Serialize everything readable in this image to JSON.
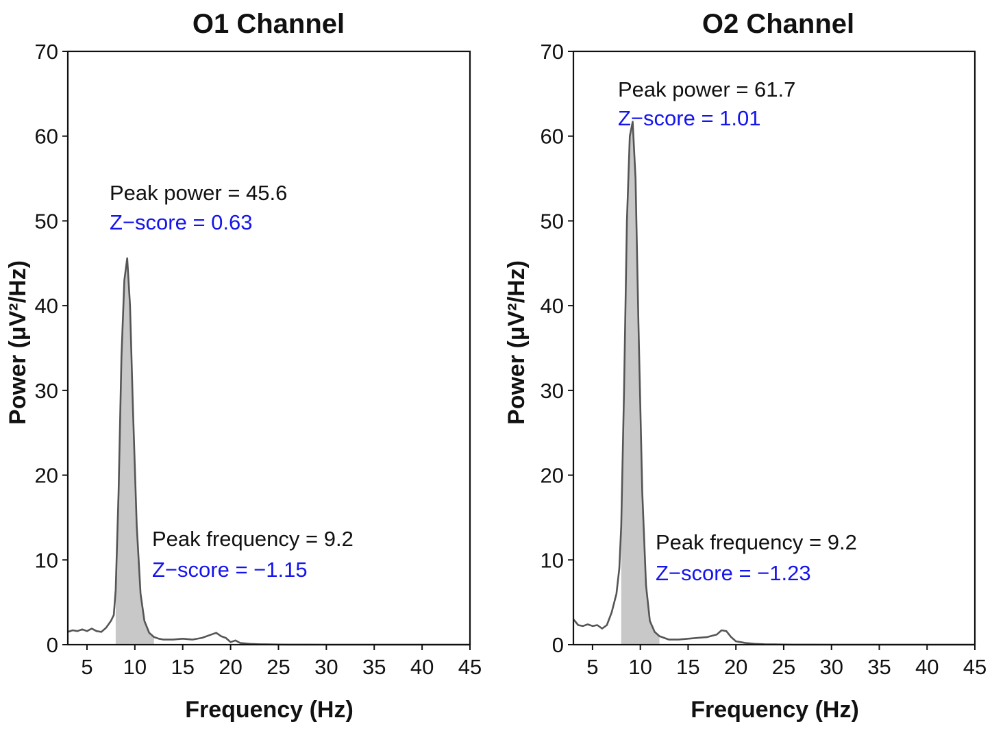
{
  "chart_data": [
    {
      "type": "line",
      "title": "O1 Channel",
      "xlabel": "Frequency (Hz)",
      "ylabel": "Power (μV²/Hz)",
      "xlim": [
        3,
        45
      ],
      "ylim": [
        0,
        70
      ],
      "xticks": [
        5,
        10,
        15,
        20,
        25,
        30,
        35,
        40,
        45
      ],
      "yticks": [
        0,
        10,
        20,
        30,
        40,
        50,
        60,
        70
      ],
      "grid": false,
      "shaded_band": [
        8,
        12
      ],
      "series": [
        {
          "x": [
            3,
            3.5,
            4,
            4.5,
            5,
            5.5,
            6,
            6.5,
            7,
            7.5,
            7.8,
            8,
            8.3,
            8.6,
            8.9,
            9.2,
            9.5,
            9.8,
            10.2,
            10.6,
            11,
            11.5,
            12,
            12.5,
            13,
            14,
            15,
            16,
            17,
            18,
            18.5,
            19,
            19.5,
            20,
            20.5,
            21,
            22,
            23,
            24,
            25,
            26,
            28,
            30,
            35,
            40,
            45
          ],
          "y": [
            1.5,
            1.7,
            1.6,
            1.8,
            1.6,
            1.9,
            1.6,
            1.5,
            2.0,
            2.8,
            3.5,
            6.5,
            18.0,
            34.0,
            43.0,
            45.6,
            40.0,
            28.0,
            14.0,
            6.0,
            2.8,
            1.4,
            0.9,
            0.7,
            0.6,
            0.6,
            0.7,
            0.6,
            0.8,
            1.2,
            1.4,
            1.0,
            0.8,
            0.3,
            0.5,
            0.2,
            0.1,
            0.05,
            0.03,
            0.02,
            0.01,
            0.01,
            0.0,
            0.0,
            0.0,
            0.0
          ]
        }
      ],
      "annotations": {
        "peak_power": "Peak power = 45.6",
        "peak_power_z": "Z−score = 0.63",
        "peak_freq": "Peak frequency = 9.2",
        "peak_freq_z": "Z−score = −1.15"
      }
    },
    {
      "type": "line",
      "title": "O2 Channel",
      "xlabel": "Frequency (Hz)",
      "ylabel": "Power (μV²/Hz)",
      "xlim": [
        3,
        45
      ],
      "ylim": [
        0,
        70
      ],
      "xticks": [
        5,
        10,
        15,
        20,
        25,
        30,
        35,
        40,
        45
      ],
      "yticks": [
        0,
        10,
        20,
        30,
        40,
        50,
        60,
        70
      ],
      "grid": false,
      "shaded_band": [
        8,
        12
      ],
      "series": [
        {
          "x": [
            3,
            3.5,
            4,
            4.5,
            5,
            5.5,
            6,
            6.5,
            7,
            7.5,
            7.8,
            8,
            8.3,
            8.6,
            8.9,
            9.2,
            9.5,
            9.8,
            10.2,
            10.6,
            11,
            11.5,
            12,
            12.5,
            13,
            14,
            15,
            16,
            17,
            18,
            18.5,
            19,
            19.5,
            20,
            20.5,
            21,
            22,
            23,
            24,
            25,
            26,
            28,
            30,
            35,
            40,
            45
          ],
          "y": [
            3.0,
            2.3,
            2.2,
            2.4,
            2.2,
            2.3,
            1.9,
            2.3,
            3.8,
            6.0,
            9.0,
            14.0,
            30.0,
            50.0,
            60.0,
            61.7,
            55.0,
            38.0,
            18.0,
            7.0,
            2.8,
            1.5,
            1.0,
            0.8,
            0.6,
            0.6,
            0.7,
            0.8,
            0.9,
            1.2,
            1.7,
            1.6,
            0.9,
            0.4,
            0.3,
            0.2,
            0.1,
            0.05,
            0.03,
            0.02,
            0.01,
            0.01,
            0.0,
            0.0,
            0.0,
            0.0
          ]
        }
      ],
      "annotations": {
        "peak_power": "Peak power = 61.7",
        "peak_power_z": "Z−score = 1.01",
        "peak_freq": "Peak frequency = 9.2",
        "peak_freq_z": "Z−score = −1.23"
      }
    }
  ],
  "colors": {
    "line": "#555555",
    "fill": "#c8c8c8",
    "annotation_blue": "#1414ee",
    "text": "#111111"
  }
}
